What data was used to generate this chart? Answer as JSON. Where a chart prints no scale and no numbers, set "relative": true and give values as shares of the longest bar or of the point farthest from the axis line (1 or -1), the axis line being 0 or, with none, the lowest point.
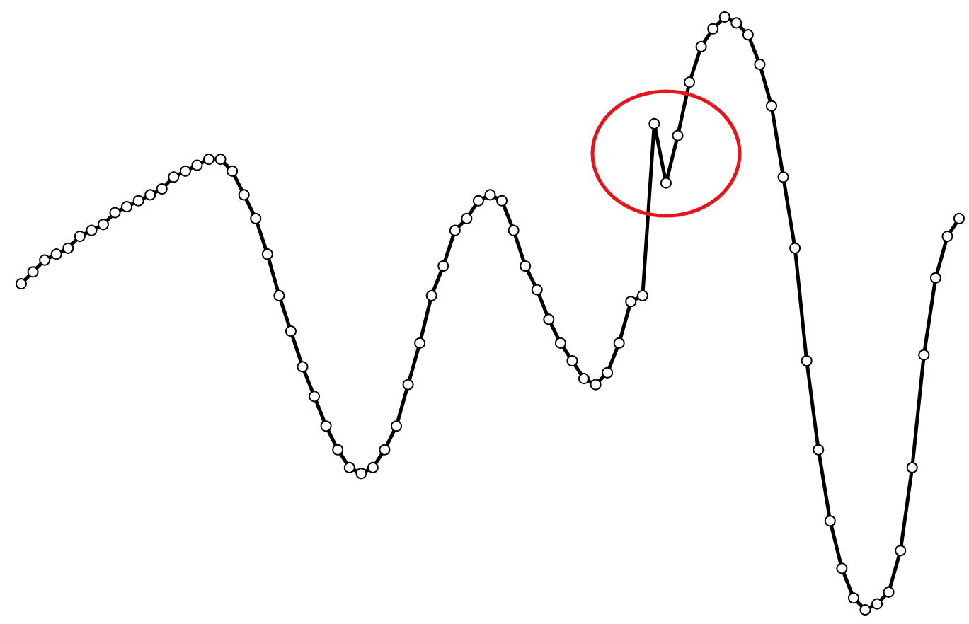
{
  "chart_data": {
    "type": "line",
    "relative": true,
    "marker": "circle",
    "line_style": "solid",
    "categories": [
      null,
      null,
      null,
      null,
      null,
      null,
      null,
      null,
      null,
      null,
      null,
      null,
      null,
      null,
      null,
      null,
      null,
      null,
      null,
      null,
      null,
      null,
      null,
      null,
      null,
      null,
      null,
      null,
      null,
      null,
      null,
      null,
      null,
      null,
      null,
      null,
      null,
      null,
      null,
      null,
      null,
      null,
      null,
      null,
      null,
      null,
      null,
      null,
      null,
      null,
      null,
      null,
      null,
      null,
      null,
      null,
      null,
      null,
      null,
      null,
      null,
      null,
      null,
      null,
      null,
      null,
      null,
      null,
      null,
      null,
      null,
      null,
      null,
      null,
      null,
      null,
      null,
      null,
      null,
      null,
      null
    ],
    "series": [
      {
        "color": "#000000",
        "values": [
          0.55,
          0.57,
          0.59,
          0.6,
          0.61,
          0.63,
          0.64,
          0.65,
          0.67,
          0.68,
          0.69,
          0.7,
          0.71,
          0.73,
          0.74,
          0.75,
          0.76,
          0.76,
          0.74,
          0.7,
          0.66,
          0.6,
          0.53,
          0.47,
          0.41,
          0.36,
          0.31,
          0.27,
          0.24,
          0.23,
          0.24,
          0.27,
          0.31,
          0.38,
          0.45,
          0.53,
          0.58,
          0.64,
          0.66,
          0.69,
          0.7,
          0.69,
          0.64,
          0.58,
          0.54,
          0.49,
          0.45,
          0.42,
          0.39,
          0.38,
          0.4,
          0.45,
          0.52,
          0.53,
          0.82,
          0.72,
          0.8,
          0.89,
          0.95,
          0.98,
          1.0,
          0.99,
          0.97,
          0.92,
          0.85,
          0.73,
          0.61,
          0.42,
          0.27,
          0.15,
          0.07,
          0.02,
          0,
          0.01,
          0.03,
          0.1,
          0.24,
          0.43,
          0.56,
          0.63,
          0.66
        ]
      }
    ]
  }
}
